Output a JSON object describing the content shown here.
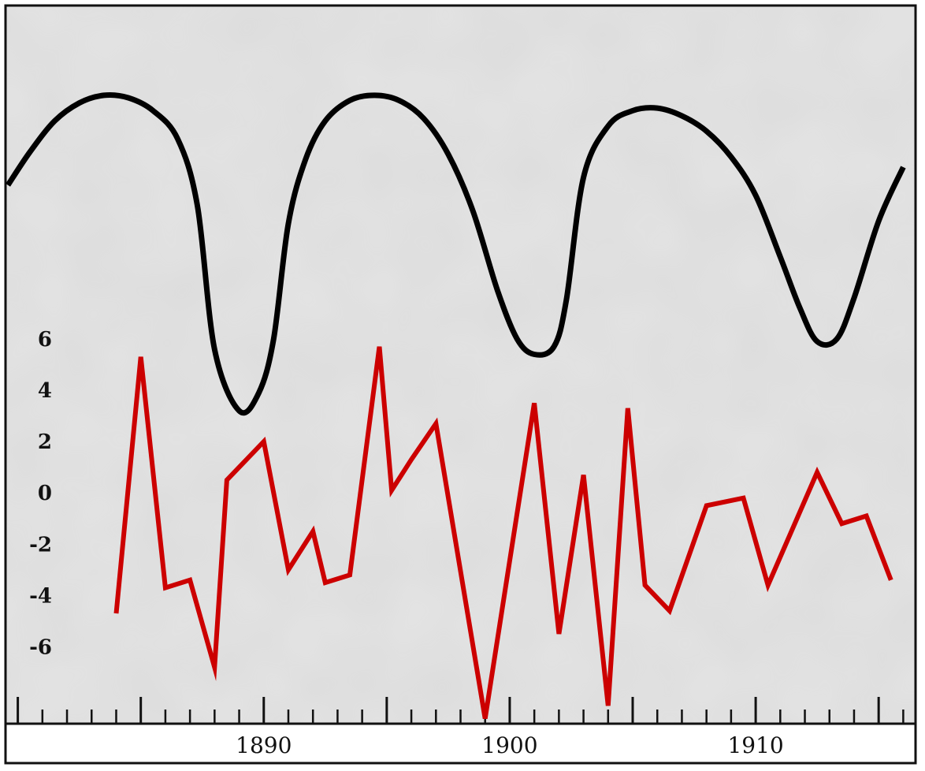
{
  "chart_data": {
    "type": "line",
    "title": "",
    "xlabel": "",
    "ylabel": "",
    "xlim": [
      1879.5,
      1916.5
    ],
    "ylim": [
      -9,
      19
    ],
    "grid": false,
    "x_ticks": [
      {
        "value": 1890,
        "label": "1890"
      },
      {
        "value": 1900,
        "label": "1900"
      },
      {
        "value": 1910,
        "label": "1910"
      }
    ],
    "y_ticks": [
      {
        "value": 6,
        "label": "6"
      },
      {
        "value": 4,
        "label": "4"
      },
      {
        "value": 2,
        "label": "2"
      },
      {
        "value": 0,
        "label": "0"
      },
      {
        "value": -2,
        "label": "-2"
      },
      {
        "value": -4,
        "label": "-4"
      },
      {
        "value": -6,
        "label": "-6"
      }
    ],
    "series": [
      {
        "color": "#cc0000",
        "style": "jagged",
        "x": [
          1884,
          1885,
          1886,
          1887,
          1888,
          1888.5,
          1890,
          1891,
          1892,
          1892.5,
          1893.5,
          1894.7,
          1895.2,
          1896,
          1897,
          1899,
          1901,
          1902,
          1903,
          1904,
          1904.8,
          1905.5,
          1906.5,
          1908,
          1909.5,
          1910.5,
          1912.5,
          1913.5,
          1914.5,
          1915.5
        ],
        "y": [
          -4.7,
          5.3,
          -3.7,
          -3.4,
          -6.8,
          0.5,
          2.0,
          -3.0,
          -1.5,
          -3.5,
          -3.2,
          5.7,
          0.1,
          1.3,
          2.7,
          -8.8,
          3.5,
          -5.5,
          0.7,
          -8.3,
          3.3,
          -3.6,
          -4.6,
          -0.5,
          -0.2,
          -3.6,
          0.8,
          -1.2,
          -0.9,
          -3.4
        ]
      },
      {
        "color": "#000000",
        "style": "smooth",
        "x": [
          1879.6,
          1880.5,
          1881.5,
          1882.5,
          1883.5,
          1884.5,
          1885.5,
          1886.5,
          1887.3,
          1888,
          1889,
          1889.8,
          1890.4,
          1891,
          1891.7,
          1892.5,
          1893.5,
          1894.5,
          1895.5,
          1896.5,
          1897.5,
          1898.5,
          1899.5,
          1900.3,
          1901,
          1901.8,
          1902.3,
          1903,
          1904,
          1905,
          1906,
          1907,
          1908,
          1909,
          1910,
          1911,
          1911.8,
          1912.5,
          1913.3,
          1914,
          1915,
          1916
        ],
        "y": [
          12.0,
          13.3,
          14.5,
          15.2,
          15.5,
          15.4,
          14.9,
          13.8,
          11.2,
          5.6,
          3.2,
          3.9,
          6.0,
          10.5,
          13.0,
          14.5,
          15.3,
          15.5,
          15.3,
          14.6,
          13.2,
          11.0,
          7.9,
          6.0,
          5.4,
          5.7,
          7.5,
          12.3,
          14.3,
          14.9,
          15.0,
          14.7,
          14.1,
          13.1,
          11.6,
          9.2,
          7.2,
          5.9,
          6.0,
          7.6,
          10.6,
          12.7
        ]
      }
    ]
  }
}
